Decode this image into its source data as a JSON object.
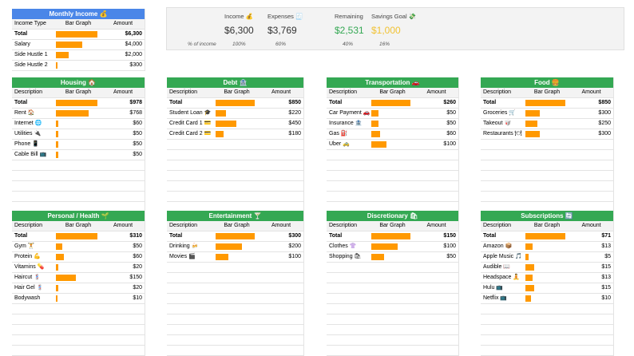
{
  "columns": {
    "description": "Description",
    "bar_graph": "Bar Graph",
    "amount": "Amount"
  },
  "summary": {
    "pct_label": "% of income",
    "metrics": [
      {
        "label": "Income 💰",
        "value": "$6,300",
        "pct": "100%",
        "color": "#333333"
      },
      {
        "label": "Expenses 🧾",
        "value": "$3,769",
        "pct": "60%",
        "color": "#333333"
      },
      {
        "label": "Remaining",
        "value": "$2,531",
        "pct": "40%",
        "color": "#34a853"
      },
      {
        "label": "Savings Goal 💸",
        "value": "$1,000",
        "pct": "16%",
        "color": "#f1c232"
      }
    ]
  },
  "panels": [
    {
      "title": "Monthly Income 💰",
      "color": "#4a86e8",
      "first_col": "Income Type",
      "rows": [
        {
          "desc": "Total",
          "amount": "$6,300",
          "fill": 1.0,
          "total": true
        },
        {
          "desc": "Salary",
          "amount": "$4,000",
          "fill": 0.635
        },
        {
          "desc": "Side Hustle 1",
          "amount": "$2,000",
          "fill": 0.317
        },
        {
          "desc": "Side Hustle 2",
          "amount": "$300",
          "fill": 0.048
        }
      ]
    },
    {
      "title": "Housing 🏠",
      "color": "#34a853",
      "rows": [
        {
          "desc": "Total",
          "amount": "$978",
          "fill": 1.0,
          "total": true
        },
        {
          "desc": "Rent 🏠",
          "amount": "$768",
          "fill": 0.785
        },
        {
          "desc": "Internet 🌐",
          "amount": "$60",
          "fill": 0.061
        },
        {
          "desc": "Utilities 🔌",
          "amount": "$50",
          "fill": 0.051
        },
        {
          "desc": "Phone 📱",
          "amount": "$50",
          "fill": 0.051
        },
        {
          "desc": "Cable Bill 📺",
          "amount": "$50",
          "fill": 0.051
        }
      ]
    },
    {
      "title": "Debt 🏦",
      "color": "#34a853",
      "rows": [
        {
          "desc": "Total",
          "amount": "$850",
          "fill": 1.0,
          "total": true
        },
        {
          "desc": "Student Loan 🎓",
          "amount": "$220",
          "fill": 0.259
        },
        {
          "desc": "Credit Card 1 💳",
          "amount": "$450",
          "fill": 0.529
        },
        {
          "desc": "Credit Card 2 💳",
          "amount": "$180",
          "fill": 0.212
        }
      ]
    },
    {
      "title": "Transportation 🚗",
      "color": "#34a853",
      "rows": [
        {
          "desc": "Total",
          "amount": "$260",
          "fill": 1.0,
          "total": true
        },
        {
          "desc": "Car Payment 🚗",
          "amount": "$50",
          "fill": 0.192
        },
        {
          "desc": "Insurance 🏦",
          "amount": "$50",
          "fill": 0.192
        },
        {
          "desc": "Gas ⛽",
          "amount": "$60",
          "fill": 0.231
        },
        {
          "desc": "Uber 🚕",
          "amount": "$100",
          "fill": 0.385
        }
      ]
    },
    {
      "title": "Food 🍔",
      "color": "#34a853",
      "rows": [
        {
          "desc": "Total",
          "amount": "$850",
          "fill": 1.0,
          "total": true
        },
        {
          "desc": "Groceries 🛒",
          "amount": "$300",
          "fill": 0.353
        },
        {
          "desc": "Takeout 🥡",
          "amount": "$250",
          "fill": 0.294
        },
        {
          "desc": "Restaurants 🍽",
          "amount": "$300",
          "fill": 0.353
        }
      ]
    },
    {
      "title": "Personal / Health 🌱",
      "color": "#34a853",
      "rows": [
        {
          "desc": "Total",
          "amount": "$310",
          "fill": 1.0,
          "total": true
        },
        {
          "desc": "Gym 🏋",
          "amount": "$50",
          "fill": 0.161
        },
        {
          "desc": "Protein 💪",
          "amount": "$60",
          "fill": 0.194
        },
        {
          "desc": "Vitamins 💊",
          "amount": "$20",
          "fill": 0.065
        },
        {
          "desc": "Haircut 💈",
          "amount": "$150",
          "fill": 0.484
        },
        {
          "desc": "Hair Gel 💈",
          "amount": "$20",
          "fill": 0.065
        },
        {
          "desc": "Bodywash",
          "amount": "$10",
          "fill": 0.032
        }
      ]
    },
    {
      "title": "Entertainment 🍸",
      "color": "#34a853",
      "rows": [
        {
          "desc": "Total",
          "amount": "$300",
          "fill": 1.0,
          "total": true
        },
        {
          "desc": "Drinking 🍻",
          "amount": "$200",
          "fill": 0.667
        },
        {
          "desc": "Movies 🎬",
          "amount": "$100",
          "fill": 0.333
        }
      ]
    },
    {
      "title": "Discretionary 🛍",
      "color": "#34a853",
      "rows": [
        {
          "desc": "Total",
          "amount": "$150",
          "fill": 1.0,
          "total": true
        },
        {
          "desc": "Clothes 👚",
          "amount": "$100",
          "fill": 0.667
        },
        {
          "desc": "Shopping 🛍",
          "amount": "$50",
          "fill": 0.333
        }
      ]
    },
    {
      "title": "Subscriptions 🔄",
      "color": "#34a853",
      "rows": [
        {
          "desc": "Total",
          "amount": "$71",
          "fill": 1.0,
          "total": true
        },
        {
          "desc": "Amazon 📦",
          "amount": "$13",
          "fill": 0.183
        },
        {
          "desc": "Apple Music 🎵",
          "amount": "$5",
          "fill": 0.07
        },
        {
          "desc": "Audible 📖",
          "amount": "$15",
          "fill": 0.211
        },
        {
          "desc": "Headspace 🧘",
          "amount": "$13",
          "fill": 0.183
        },
        {
          "desc": "Hulu 📺",
          "amount": "$15",
          "fill": 0.211
        },
        {
          "desc": "Netflix 📺",
          "amount": "$10",
          "fill": 0.141
        }
      ]
    }
  ]
}
